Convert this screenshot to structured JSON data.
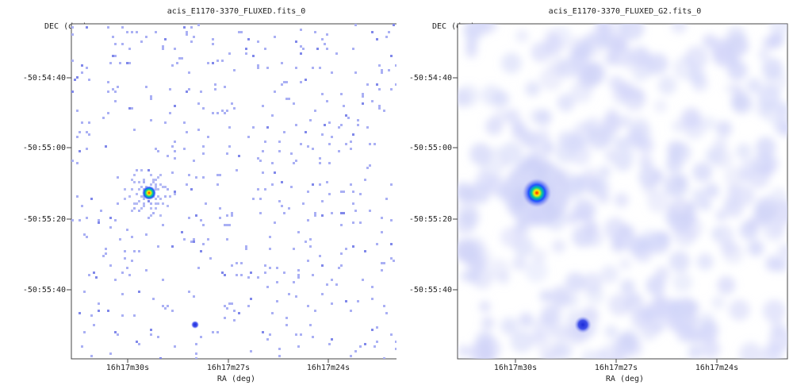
{
  "chart_data": [
    {
      "type": "heatmap",
      "title": "acis_E1170-3370_FLUXED.fits_0",
      "xlabel": "RA (deg)",
      "ylabel": "DEC (deg)",
      "x_ticks": [
        "16h17m30s",
        "16h17m27s",
        "16h17m24s"
      ],
      "y_ticks": [
        "-50:54:40",
        "-50:55:00",
        "-50:55:20",
        "-50:55:40"
      ],
      "grid": false,
      "style": "raw-counts",
      "colors": {
        "background": "#ffffff",
        "low": "#aab0f4",
        "mid": "#00c8a0",
        "high": "#ff2000"
      },
      "sources": [
        {
          "label": "bright",
          "ra": "16h17m29.7s",
          "dec": "-50:55:13",
          "peak": "high"
        },
        {
          "label": "faint",
          "ra": "16h17m28.4s",
          "dec": "-50:55:50",
          "peak": "low"
        }
      ]
    },
    {
      "type": "heatmap",
      "title": "acis_E1170-3370_FLUXED_G2.fits_0",
      "xlabel": "RA (deg)",
      "ylabel": "DEC (deg)",
      "x_ticks": [
        "16h17m30s",
        "16h17m27s",
        "16h17m24s"
      ],
      "y_ticks": [
        "-50:54:40",
        "-50:55:00",
        "-50:55:20",
        "-50:55:40"
      ],
      "grid": false,
      "style": "gaussian-smoothed",
      "colors": {
        "background": "#ffffff",
        "low": "#d4d7f8",
        "mid": "#00c8a0",
        "high": "#ff2000"
      },
      "sources": [
        {
          "label": "bright",
          "ra": "16h17m29.3s",
          "dec": "-50:55:13",
          "peak": "high"
        },
        {
          "label": "faint",
          "ra": "16h17m27.6s",
          "dec": "-50:55:50",
          "peak": "low"
        }
      ]
    }
  ]
}
